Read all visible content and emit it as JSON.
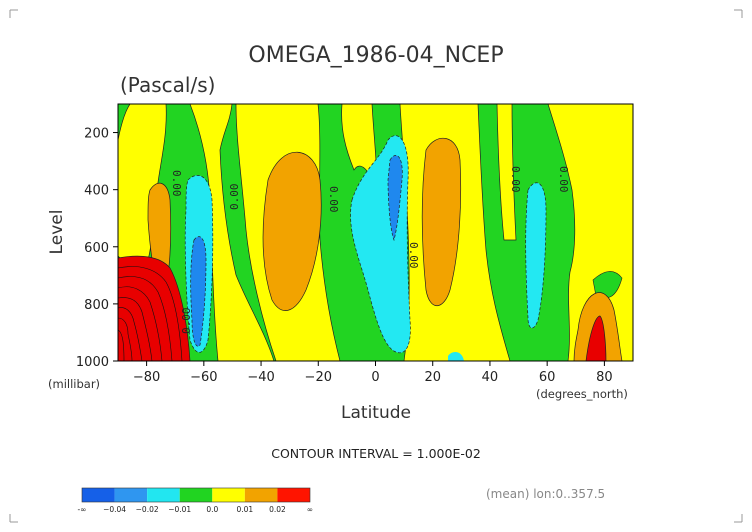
{
  "chart_data": {
    "type": "heatmap",
    "title": "OMEGA_1986-04_NCEP",
    "units": "(Pascal/s)",
    "xlabel": "Latitude",
    "ylabel": "Level",
    "x_unit_note": "(degrees_north)",
    "y_unit_note": "(millibar)",
    "xlim": [
      -90,
      90
    ],
    "ylim": [
      1000,
      100
    ],
    "x_ticks": [
      -80,
      -60,
      -40,
      -20,
      0,
      20,
      40,
      60,
      80
    ],
    "x_tick_labels": [
      "−80",
      "−60",
      "−40",
      "−20",
      "0",
      "20",
      "40",
      "60",
      "80"
    ],
    "y_ticks": [
      200,
      400,
      600,
      800,
      1000
    ],
    "y_tick_labels": [
      "200",
      "400",
      "600",
      "800",
      "1000"
    ],
    "contour_interval_text": "CONTOUR INTERVAL = 1.000E-02",
    "contour_labels": [
      "0.00",
      "0.00",
      "0.00",
      "0.00",
      "0.00",
      "0.00",
      "0.00"
    ],
    "footer_text": "(mean) lon:0..357.5",
    "colorbar": {
      "colors": [
        "#1560e8",
        "#2f96f0",
        "#22e6f0",
        "#21d421",
        "#ffff00",
        "#f2a300",
        "#ff1400"
      ],
      "labels": [
        "-∞",
        "−0.04",
        "−0.02",
        "−0.01",
        "0.0",
        "0.01",
        "0.02",
        "∞"
      ]
    },
    "colors": {
      "green": "#22d422",
      "cyan": "#23e8f2",
      "blue": "#1f88ee",
      "yellow": "#ffff00",
      "orange": "#f2a300",
      "red": "#e80000"
    }
  }
}
